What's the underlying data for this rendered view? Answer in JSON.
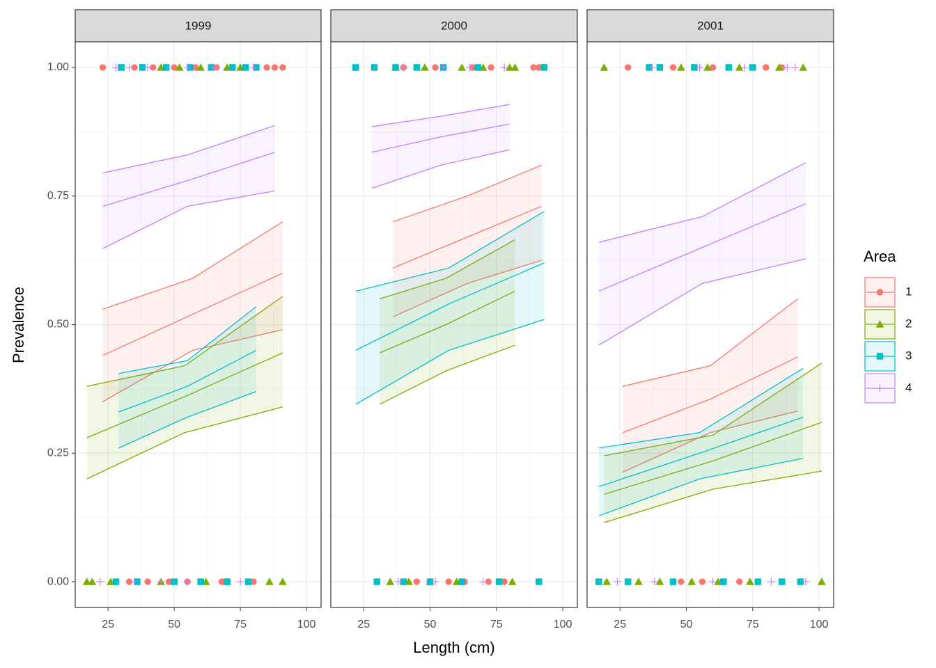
{
  "chart_data": {
    "type": "line",
    "xlabel": "Length (cm)",
    "ylabel": "Prevalence",
    "legend_title": "Area",
    "xlim": [
      12.6,
      105.5
    ],
    "ylim": [
      -0.05,
      1.05
    ],
    "xticks": [
      25,
      50,
      75,
      100
    ],
    "yticks": [
      {
        "value": 0,
        "label": "0.00"
      },
      {
        "value": 0.25,
        "label": "0.25"
      },
      {
        "value": 0.5,
        "label": "0.50"
      },
      {
        "value": 0.75,
        "label": "0.75"
      },
      {
        "value": 1,
        "label": "1.00"
      }
    ],
    "grid": true,
    "legend_position": "right",
    "legend": [
      {
        "name": "1",
        "color": "#F8766D",
        "shape": "circle"
      },
      {
        "name": "2",
        "color": "#7CAE00",
        "shape": "triangle"
      },
      {
        "name": "3",
        "color": "#00BFC4",
        "shape": "square"
      },
      {
        "name": "4",
        "color": "#C77CFF",
        "shape": "plus"
      }
    ],
    "facets": [
      {
        "title": "1999",
        "series": [
          {
            "x": [
              23,
              57,
              91
            ],
            "values": [
              0.44,
              0.52,
              0.6
            ],
            "upper": [
              0.53,
              0.59,
              0.7
            ],
            "lower": [
              0.35,
              0.45,
              0.49
            ],
            "points": {
              "x": [
                23,
                35,
                42,
                50,
                58,
                66,
                85,
                88,
                91,
                33,
                40,
                48,
                55,
                68,
                80
              ],
              "y": [
                1,
                1,
                1,
                1,
                1,
                1,
                1,
                1,
                1,
                0,
                0,
                0,
                0,
                0,
                0
              ]
            }
          },
          {
            "x": [
              17,
              54,
              91
            ],
            "values": [
              0.28,
              0.36,
              0.445
            ],
            "upper": [
              0.38,
              0.42,
              0.555
            ],
            "lower": [
              0.2,
              0.29,
              0.34
            ],
            "points": {
              "x": [
                45,
                52,
                60,
                70,
                75,
                17,
                19,
                26,
                45,
                62,
                70,
                86,
                91
              ],
              "y": [
                1,
                1,
                1,
                1,
                1,
                0,
                0,
                0,
                0,
                0,
                0,
                0,
                0
              ]
            }
          },
          {
            "x": [
              29,
              55,
              81
            ],
            "values": [
              0.33,
              0.38,
              0.45
            ],
            "upper": [
              0.405,
              0.43,
              0.535
            ],
            "lower": [
              0.26,
              0.32,
              0.37
            ],
            "points": {
              "x": [
                30,
                38,
                47,
                56,
                64,
                72,
                77,
                81,
                28,
                36,
                50,
                60,
                70,
                78
              ],
              "y": [
                1,
                1,
                1,
                1,
                1,
                1,
                1,
                1,
                0,
                0,
                0,
                0,
                0,
                0
              ]
            }
          },
          {
            "x": [
              23,
              55,
              88
            ],
            "values": [
              0.73,
              0.78,
              0.835
            ],
            "upper": [
              0.795,
              0.83,
              0.887
            ],
            "lower": [
              0.648,
              0.73,
              0.76
            ],
            "points": {
              "x": [
                28,
                33,
                40,
                55,
                65,
                80,
                22,
                35,
                45,
                55,
                75
              ],
              "y": [
                1,
                1,
                1,
                1,
                1,
                1,
                0,
                0,
                0,
                0,
                0
              ]
            }
          }
        ]
      },
      {
        "title": "2000",
        "series": [
          {
            "x": [
              36,
              64,
              92
            ],
            "values": [
              0.61,
              0.67,
              0.73
            ],
            "upper": [
              0.7,
              0.75,
              0.81
            ],
            "lower": [
              0.515,
              0.58,
              0.625
            ],
            "points": {
              "x": [
                40,
                52,
                66,
                73,
                89,
                91,
                45,
                57,
                63,
                72,
                78
              ],
              "y": [
                1,
                1,
                1,
                1,
                1,
                1,
                0,
                0,
                0,
                0,
                0
              ]
            }
          },
          {
            "x": [
              31,
              56,
              82
            ],
            "values": [
              0.445,
              0.5,
              0.565
            ],
            "upper": [
              0.55,
              0.59,
              0.665
            ],
            "lower": [
              0.345,
              0.41,
              0.46
            ],
            "points": {
              "x": [
                37,
                48,
                62,
                70,
                80,
                82,
                35,
                42,
                50,
                60,
                81
              ],
              "y": [
                1,
                1,
                1,
                1,
                1,
                1,
                0,
                0,
                0,
                0,
                0
              ]
            }
          },
          {
            "x": [
              22,
              57,
              93
            ],
            "values": [
              0.45,
              0.54,
              0.62
            ],
            "upper": [
              0.565,
              0.61,
              0.72
            ],
            "lower": [
              0.345,
              0.45,
              0.51
            ],
            "points": {
              "x": [
                22,
                29,
                37,
                45,
                55,
                68,
                93,
                30,
                40,
                50,
                62,
                76,
                91
              ],
              "y": [
                1,
                1,
                1,
                1,
                1,
                1,
                1,
                0,
                0,
                0,
                0,
                0,
                0
              ]
            }
          },
          {
            "x": [
              28,
              54,
              80
            ],
            "values": [
              0.835,
              0.865,
              0.89
            ],
            "upper": [
              0.885,
              0.905,
              0.928
            ],
            "lower": [
              0.765,
              0.81,
              0.84
            ],
            "points": {
              "x": [
                40,
                55,
                65,
                78,
                38,
                52,
                70
              ],
              "y": [
                1,
                1,
                1,
                1,
                0,
                0,
                0
              ]
            }
          }
        ]
      },
      {
        "title": "2001",
        "series": [
          {
            "x": [
              26,
              59,
              92
            ],
            "values": [
              0.29,
              0.355,
              0.437
            ],
            "upper": [
              0.38,
              0.42,
              0.55
            ],
            "lower": [
              0.213,
              0.29,
              0.332
            ],
            "points": {
              "x": [
                28,
                45,
                60,
                80,
                86,
                48,
                56,
                70
              ],
              "y": [
                1,
                1,
                1,
                1,
                1,
                0,
                0,
                0
              ]
            }
          },
          {
            "x": [
              19,
              60,
              101
            ],
            "values": [
              0.17,
              0.235,
              0.31
            ],
            "upper": [
              0.245,
              0.285,
              0.425
            ],
            "lower": [
              0.115,
              0.18,
              0.215
            ],
            "points": {
              "x": [
                19,
                48,
                58,
                70,
                85,
                94,
                20,
                32,
                40,
                52,
                62,
                74,
                101
              ],
              "y": [
                1,
                1,
                1,
                1,
                1,
                1,
                0,
                0,
                0,
                0,
                0,
                0,
                0
              ]
            }
          },
          {
            "x": [
              17,
              55,
              94
            ],
            "values": [
              0.185,
              0.25,
              0.32
            ],
            "upper": [
              0.26,
              0.29,
              0.415
            ],
            "lower": [
              0.128,
              0.2,
              0.24
            ],
            "points": {
              "x": [
                36,
                40,
                53,
                66,
                75,
                17,
                28,
                45,
                64,
                77,
                86,
                93
              ],
              "y": [
                1,
                1,
                1,
                1,
                1,
                0,
                0,
                0,
                0,
                0,
                0,
                0
              ]
            }
          },
          {
            "x": [
              17,
              56,
              95
            ],
            "values": [
              0.565,
              0.65,
              0.735
            ],
            "upper": [
              0.66,
              0.71,
              0.815
            ],
            "lower": [
              0.46,
              0.58,
              0.628
            ],
            "points": {
              "x": [
                37,
                55,
                72,
                88,
                91,
                24,
                38,
                60,
                82,
                95
              ],
              "y": [
                1,
                1,
                1,
                1,
                1,
                0,
                0,
                0,
                0,
                0
              ]
            }
          }
        ]
      }
    ]
  }
}
